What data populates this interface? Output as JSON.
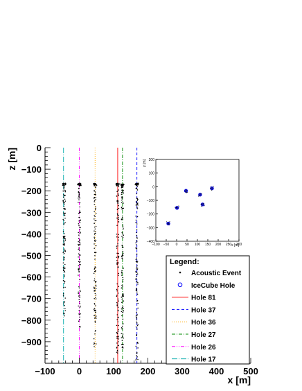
{
  "chart_data": [
    {
      "type": "scatter",
      "title": "",
      "xlabel": "x [m]",
      "ylabel": "z [m]",
      "xlim": [
        -100,
        500
      ],
      "ylim": [
        -1000,
        0
      ],
      "x_ticks": [
        "−100",
        "0",
        "100",
        "200",
        "300",
        "400",
        "500"
      ],
      "x_tick_values": [
        -100,
        0,
        100,
        200,
        300,
        400,
        500
      ],
      "y_ticks": [
        "0",
        "−100",
        "−200",
        "−300",
        "−400",
        "−500",
        "−600",
        "−700",
        "−800",
        "−900"
      ],
      "y_tick_values": [
        0,
        -100,
        -200,
        -300,
        -400,
        -500,
        -600,
        -700,
        -800,
        -900
      ],
      "legend": {
        "title": "Legend:",
        "placement": "bottom-right",
        "entries": [
          {
            "label": "Acoustic Event",
            "style": "dot",
            "color": "#000000"
          },
          {
            "label": "IceCube Hole",
            "style": "circle",
            "color": "#0000ff"
          },
          {
            "label": "Hole 81",
            "style": "solid",
            "color": "#ff0000"
          },
          {
            "label": "Hole 37",
            "style": "dashed",
            "color": "#0000ff"
          },
          {
            "label": "Hole 36",
            "style": "dotted",
            "color": "#ffaa00"
          },
          {
            "label": "Hole 27",
            "style": "dashdot",
            "color": "#008800"
          },
          {
            "label": "Hole 26",
            "style": "dashdotdot",
            "color": "#ff00ff"
          },
          {
            "label": "Hole 17",
            "style": "longdashdot",
            "color": "#00aaaa"
          }
        ]
      },
      "holes": [
        {
          "name": "Hole 81",
          "x": 112,
          "color": "#ff0000",
          "dash": ""
        },
        {
          "name": "Hole 37",
          "x": 168,
          "color": "#0000ff",
          "dash": "4,3"
        },
        {
          "name": "Hole 36",
          "x": 46,
          "color": "#ffaa00",
          "dash": "1,2"
        },
        {
          "name": "Hole 27",
          "x": 126,
          "color": "#008800",
          "dash": "5,2,1,2"
        },
        {
          "name": "Hole 26",
          "x": 0,
          "color": "#ff00ff",
          "dash": "5,2,1,2,1,2"
        },
        {
          "name": "Hole 17",
          "x": -46,
          "color": "#00aaaa",
          "dash": "8,2,1,2"
        }
      ],
      "acoustic_event_columns": [
        {
          "x": -44,
          "z_top": -165,
          "z_bottom": -800
        },
        {
          "x": 0,
          "z_top": -165,
          "z_bottom": -860
        },
        {
          "x": 46,
          "z_top": -165,
          "z_bottom": -930
        },
        {
          "x": 112,
          "z_top": -165,
          "z_bottom": -960
        },
        {
          "x": 126,
          "z_top": -168,
          "z_bottom": -940
        },
        {
          "x": 168,
          "z_top": -165,
          "z_bottom": -990
        }
      ]
    },
    {
      "type": "scatter",
      "title": "",
      "xlabel": "x [m]",
      "ylabel": "y [m]",
      "xlim": [
        -100,
        300
      ],
      "ylim": [
        -400,
        200
      ],
      "x_ticks": [
        "−100",
        "−50",
        "0",
        "50",
        "100",
        "150",
        "200",
        "250",
        "300"
      ],
      "x_tick_values": [
        -100,
        -50,
        0,
        50,
        100,
        150,
        200,
        250,
        300
      ],
      "y_ticks": [
        "200",
        "100",
        "0",
        "−100",
        "−200",
        "−300",
        "−400"
      ],
      "y_tick_values": [
        200,
        100,
        0,
        -100,
        -200,
        -300,
        -400
      ],
      "icecube_holes": [
        {
          "x": -40,
          "y": -270
        },
        {
          "x": 2,
          "y": -155
        },
        {
          "x": 45,
          "y": -30
        },
        {
          "x": 113,
          "y": -58
        },
        {
          "x": 125,
          "y": -130
        },
        {
          "x": 170,
          "y": -12
        }
      ]
    }
  ]
}
